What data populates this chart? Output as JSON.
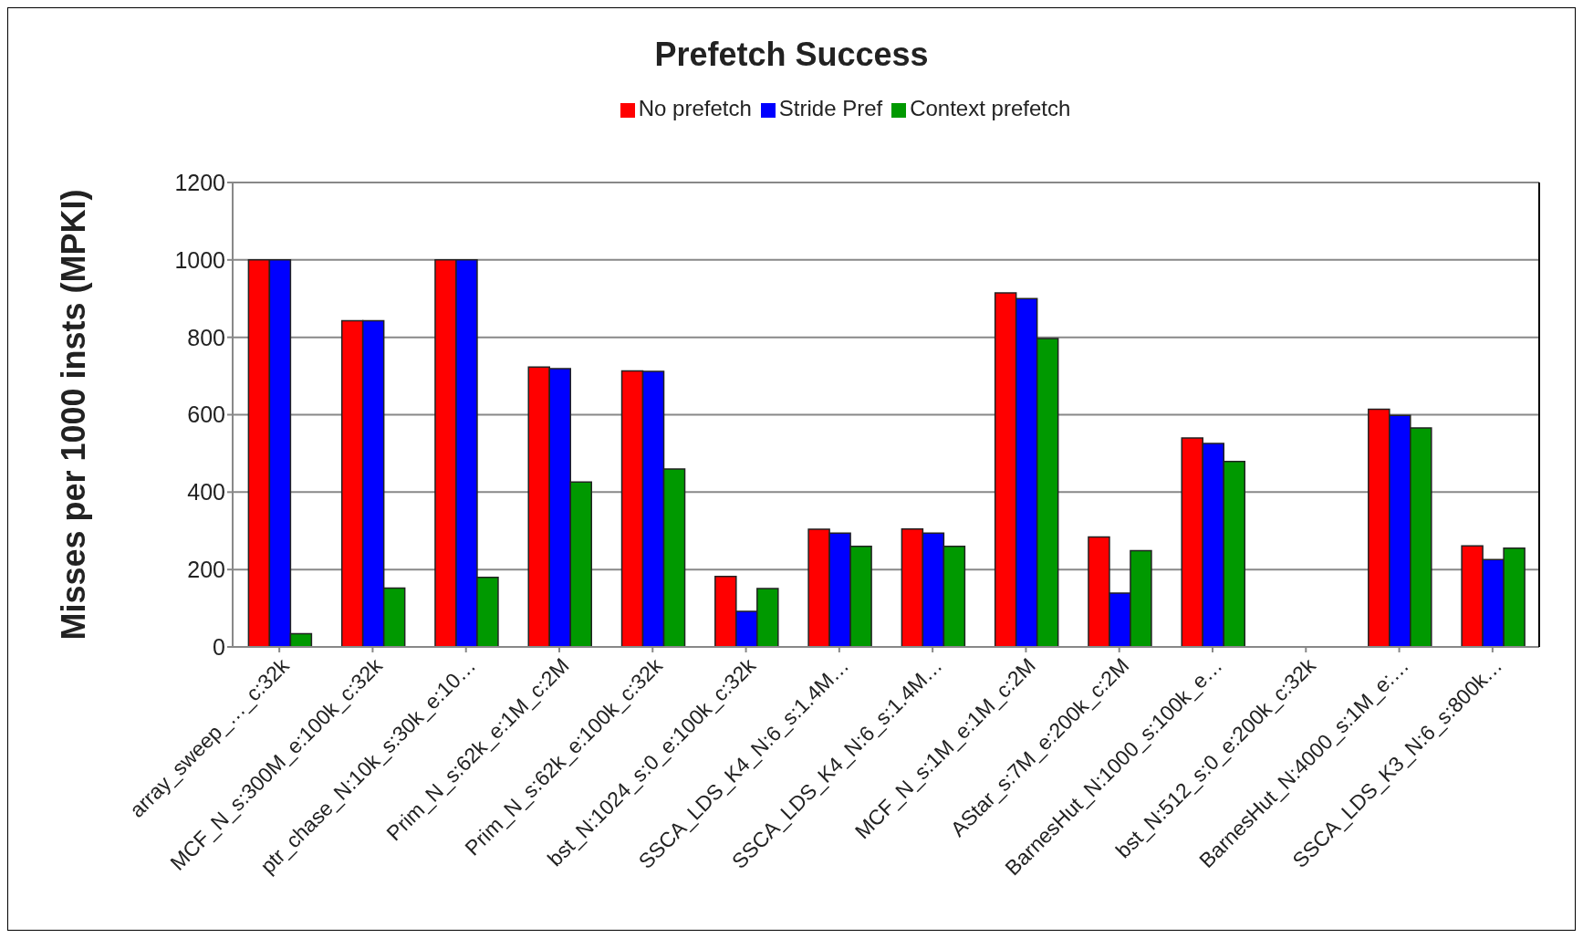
{
  "chart_data": {
    "type": "bar",
    "title": "Prefetch Success",
    "ylabel": "Misses per 1000 insts (MPKI)",
    "categories": [
      "array_sweep_…_c:32k",
      "MCF_N_s:300M_e:100k_c:32k",
      "ptr_chase_N:10k_s:30k_e:10…",
      "Prim_N_s:62k_e:1M_c:2M",
      "Prim_N_s:62k_e:100k_c:32k",
      "bst_N:1024_s:0_e:100k_c:32k",
      "SSCA_LDS_K4_N:6_s:1.4M…",
      "SSCA_LDS_K4_N:6_s:1.4M…",
      "MCF_N_s:1M_e:1M_c:2M",
      "AStar_s:7M_e:200k_c:2M",
      "BarnesHut_N:1000_s:100k_e…",
      "bst_N:512_s:0_e:200k_c:32k",
      "BarnesHut_N:4000_s:1M_e:…",
      "SSCA_LDS_K3_N:6_s:800k…"
    ],
    "series": [
      {
        "name": "No prefetch",
        "color": "#ff0000",
        "values": [
          1000,
          843,
          1000,
          723,
          713,
          182,
          304,
          305,
          915,
          284,
          540,
          null,
          614,
          261
        ]
      },
      {
        "name": "Stride Pref",
        "color": "#0000ff",
        "values": [
          1000,
          843,
          1000,
          719,
          712,
          92,
          294,
          294,
          900,
          139,
          526,
          null,
          598,
          226
        ]
      },
      {
        "name": "Context prefetch",
        "color": "#009900",
        "values": [
          34,
          152,
          180,
          426,
          460,
          151,
          260,
          260,
          797,
          249,
          479,
          null,
          566,
          255
        ]
      }
    ],
    "ylim": [
      0,
      1200
    ],
    "yticks": [
      0,
      200,
      400,
      600,
      800,
      1000,
      1200
    ],
    "grid": "y",
    "legend": "top"
  }
}
